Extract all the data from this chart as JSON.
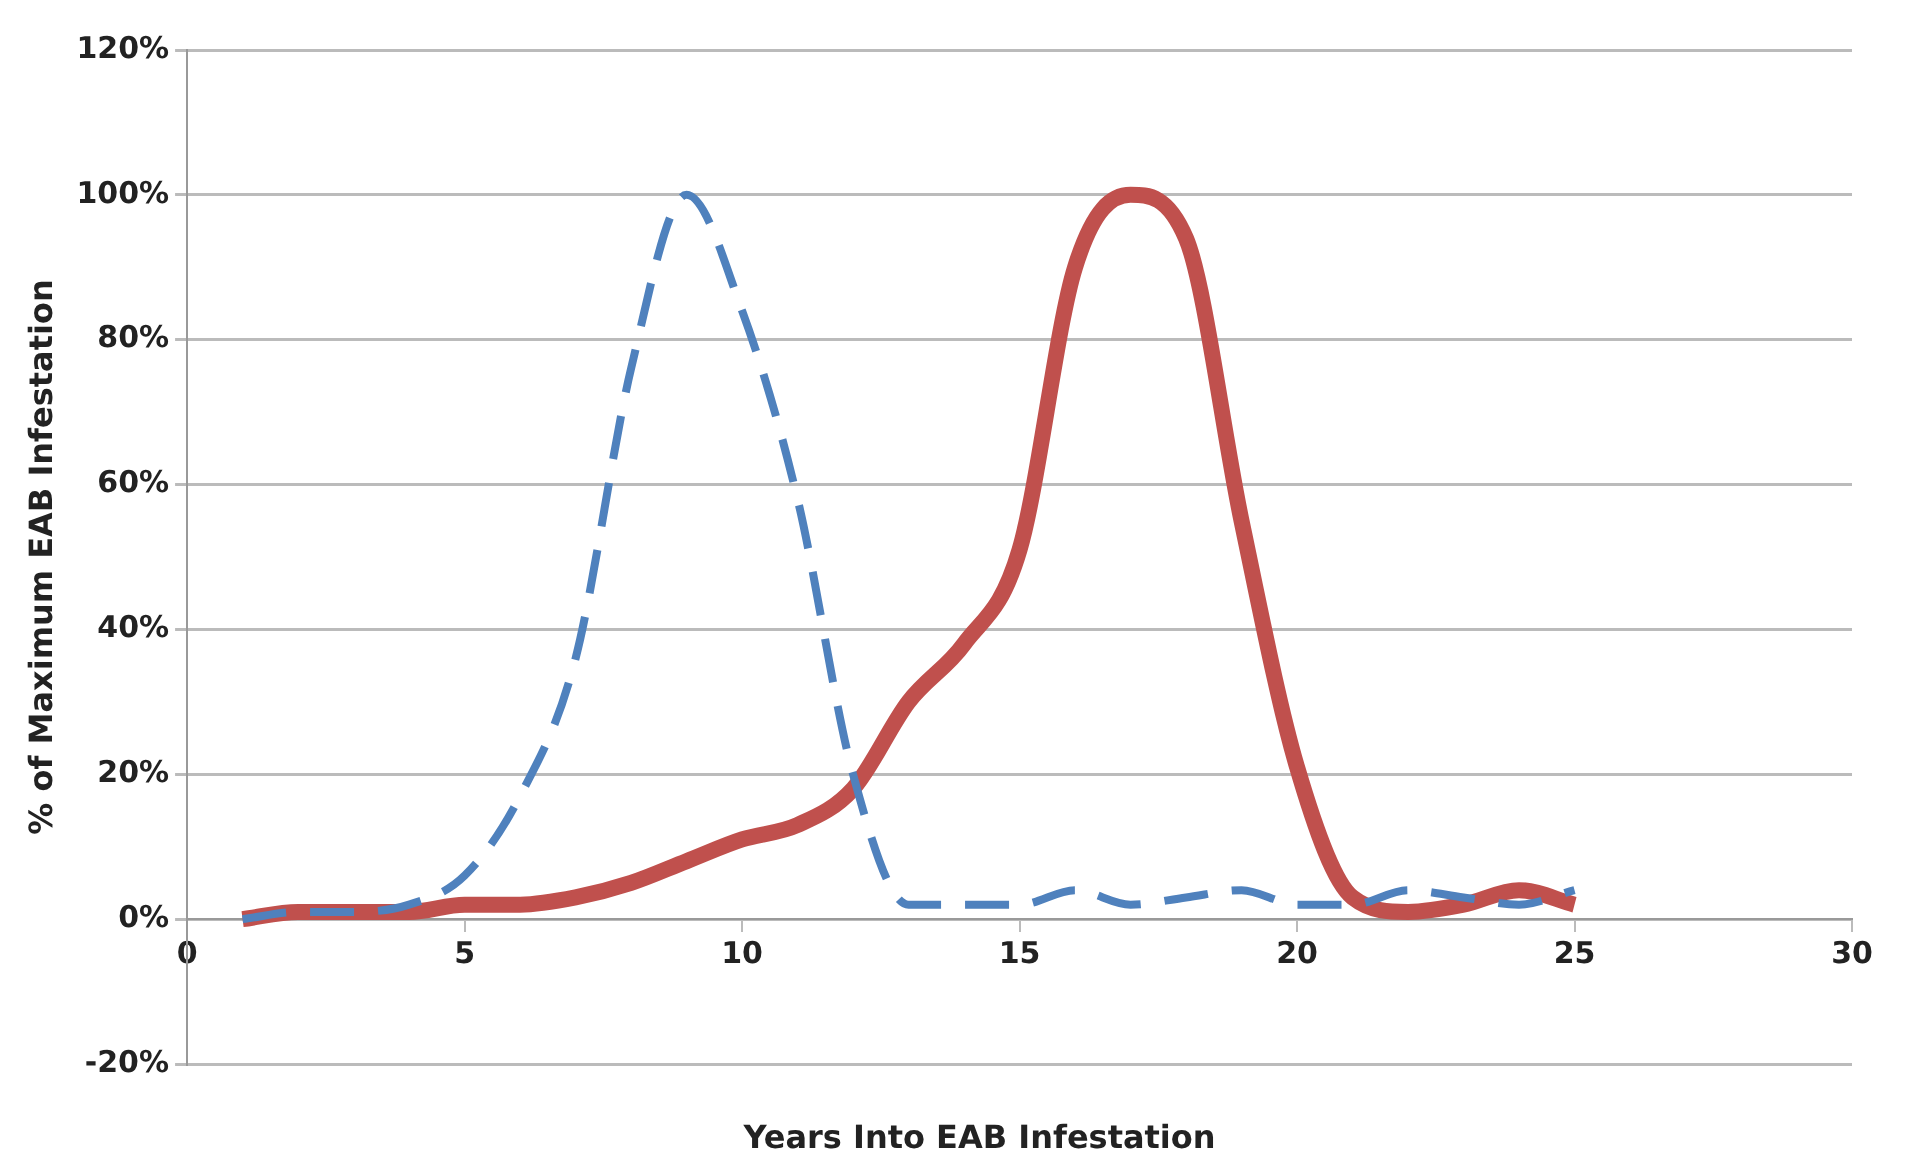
{
  "chart_data": {
    "type": "line",
    "xlabel": "Years Into EAB Infestation",
    "ylabel": "% of Maximum EAB Infestation",
    "x": [
      1,
      2,
      3,
      4,
      5,
      6,
      7,
      8,
      9,
      10,
      11,
      12,
      13,
      14,
      15,
      16,
      17,
      18,
      19,
      20,
      21,
      22,
      23,
      24,
      25
    ],
    "series": [
      {
        "color": "#4f81bd",
        "line_style": "dashed",
        "values": [
          0,
          1,
          1,
          2,
          6,
          17,
          36,
          76,
          100,
          84,
          58,
          20,
          2,
          2,
          2,
          4,
          2,
          3,
          4,
          2,
          2,
          4,
          3,
          2,
          4
        ]
      },
      {
        "color": "#c0504d",
        "line_style": "solid",
        "values": [
          0,
          1,
          1,
          1,
          2,
          2,
          3,
          5,
          8,
          11,
          13,
          18,
          30,
          38,
          51,
          90,
          100,
          94,
          55,
          21,
          3,
          1,
          2,
          4,
          2
        ]
      }
    ],
    "xlim": [
      0,
      30
    ],
    "xticks": [
      0,
      5,
      10,
      15,
      20,
      25,
      30
    ],
    "ylim": [
      -20,
      120
    ],
    "yticks": [
      {
        "value": -20,
        "label": "-20%"
      },
      {
        "value": 0,
        "label": "0%"
      },
      {
        "value": 20,
        "label": "20%"
      },
      {
        "value": 40,
        "label": "40%"
      },
      {
        "value": 60,
        "label": "60%"
      },
      {
        "value": 80,
        "label": "80%"
      },
      {
        "value": 100,
        "label": "100%"
      },
      {
        "value": 120,
        "label": "120%"
      }
    ],
    "grid": "y",
    "legend": false,
    "marker": "none"
  }
}
